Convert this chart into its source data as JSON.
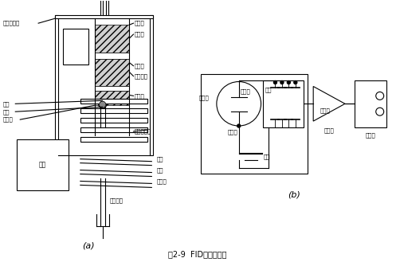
{
  "title": "图2-9  FID结构示意图",
  "label_a": "(a)",
  "label_b": "(b)",
  "lw": 0.8,
  "font_size": 5.5,
  "font_size_small": 5.0
}
